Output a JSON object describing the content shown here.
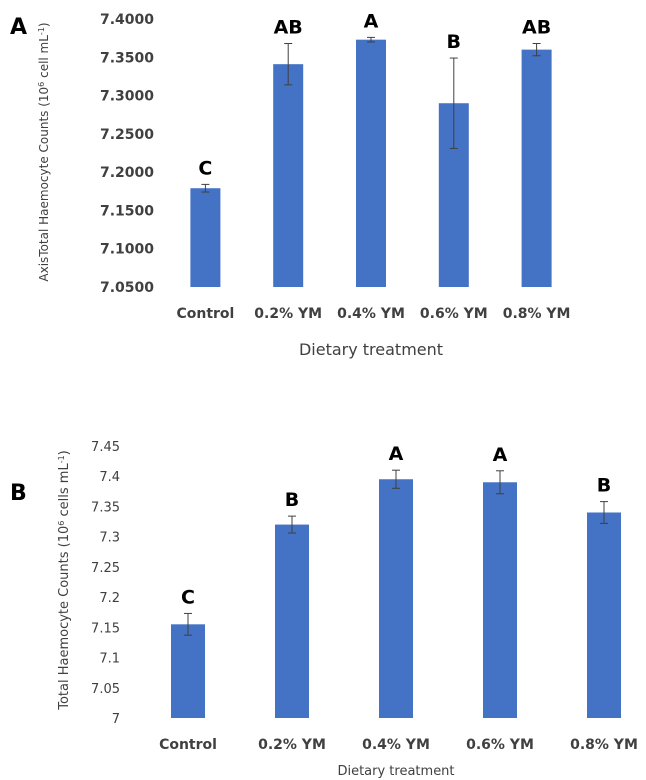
{
  "chart_data": [
    {
      "panel_label": "A",
      "type": "bar",
      "categories": [
        "Control",
        "0.2% YM",
        "0.4% YM",
        "0.6% YM",
        "0.8% YM"
      ],
      "values": [
        7.179,
        7.341,
        7.373,
        7.29,
        7.36
      ],
      "errors": [
        0.005,
        0.027,
        0.003,
        0.059,
        0.008
      ],
      "significance": [
        "C",
        "AB",
        "A",
        "B",
        "AB"
      ],
      "ylabel_text": "AxisTotal Haemocyte Counts (10",
      "ylabel_sup": "6",
      "ylabel_mid": " cell mL",
      "ylabel_sup2": "-1",
      "ylabel_end": ")",
      "xlabel": "Dietary treatment",
      "ylim": [
        7.05,
        7.4
      ],
      "yticks": [
        "7.0500",
        "7.1000",
        "7.1500",
        "7.2000",
        "7.2500",
        "7.3000",
        "7.3500",
        "7.4000"
      ],
      "bar_color": "#4472c4",
      "grid": false
    },
    {
      "panel_label": "B",
      "type": "bar",
      "categories": [
        "Control",
        "0.2% YM",
        "0.4% YM",
        "0.6% YM",
        "0.8% YM"
      ],
      "values": [
        7.155,
        7.32,
        7.395,
        7.39,
        7.34
      ],
      "errors": [
        0.018,
        0.014,
        0.015,
        0.019,
        0.018
      ],
      "significance": [
        "C",
        "B",
        "A",
        "A",
        "B"
      ],
      "ylabel_text": "Total Haemocyte Counts (10",
      "ylabel_sup": "6",
      "ylabel_mid": " cells mL",
      "ylabel_sup2": "-1",
      "ylabel_end": ")",
      "xlabel": "Dietary treatment",
      "ylim": [
        7.0,
        7.45
      ],
      "yticks": [
        "7",
        "7.05",
        "7.1",
        "7.15",
        "7.2",
        "7.25",
        "7.3",
        "7.35",
        "7.4",
        "7.45"
      ],
      "bar_color": "#4472c4",
      "grid": false
    }
  ]
}
